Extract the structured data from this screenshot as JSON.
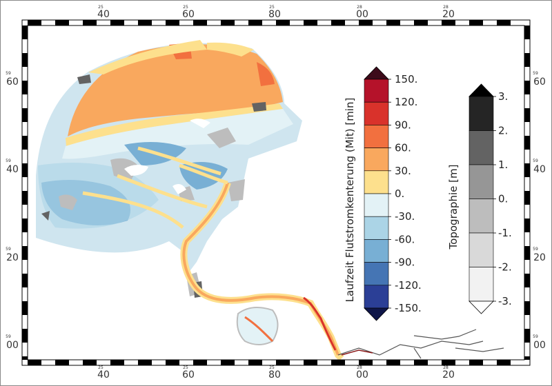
{
  "frame": {
    "lon_labels": [
      "40",
      "60",
      "80",
      "00",
      "20"
    ],
    "lon_superscripts": [
      "25",
      "25",
      "25",
      "28",
      "28"
    ],
    "lat_labels": [
      "60",
      "40",
      "20",
      "00"
    ],
    "lat_superscripts": [
      "59",
      "59",
      "59",
      "59"
    ]
  },
  "colorbar_current": {
    "title": "Laufzeit Flutstromkenterung (Mit) [min]",
    "labels": [
      "150.",
      "120.",
      "90.",
      "60.",
      "30.",
      "0.",
      "-30.",
      "-60.",
      "-90.",
      "-120.",
      "-150."
    ],
    "colors": [
      "#b5122a",
      "#d9322b",
      "#f2703f",
      "#f9a85e",
      "#fde08d",
      "#e3f2f6",
      "#abd4e6",
      "#78afd4",
      "#4575b4",
      "#2b3f96"
    ],
    "over_color": "#3d0b1a",
    "under_color": "#0f1649"
  },
  "colorbar_topo": {
    "title": "Topographie [m]",
    "labels": [
      "3.",
      "2.",
      "1.",
      "0.",
      "-1.",
      "-2.",
      "-3."
    ],
    "colors": [
      "#252525",
      "#636363",
      "#969696",
      "#bdbdbd",
      "#d9d9d9",
      "#f2f2f2"
    ],
    "over_color": "#000000",
    "under_color": "#ffffff"
  }
}
